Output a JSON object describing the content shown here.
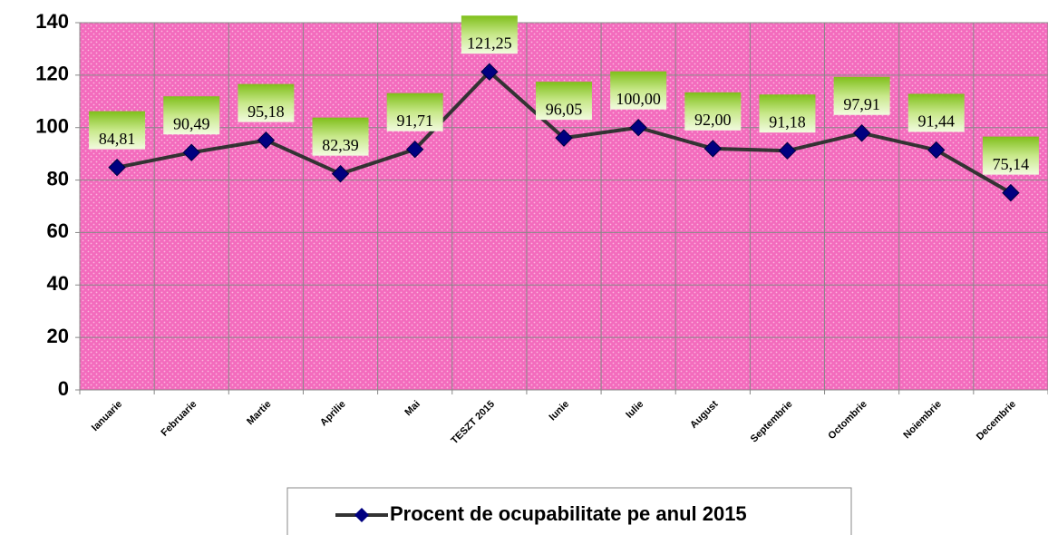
{
  "chart_data": {
    "type": "line",
    "categories": [
      "Ianuarie",
      "Februarie",
      "Martie",
      "Aprilie",
      "Mai",
      "TESZT 2015",
      "Iunie",
      "Iulie",
      "August",
      "Septembrie",
      "Octombrie",
      "Noiembrie",
      "Decembrie"
    ],
    "series": [
      {
        "name": "Procent de ocupabilitate pe anul 2015",
        "color": "#000080",
        "line_color": "#333333",
        "values": [
          84.81,
          90.49,
          95.18,
          82.39,
          91.71,
          121.25,
          96.05,
          100.0,
          92.0,
          91.18,
          97.91,
          91.44,
          75.14
        ],
        "value_labels": [
          "84,81",
          "90,49",
          "95,18",
          "82,39",
          "91,71",
          "121,25",
          "96,05",
          "100,00",
          "92,00",
          "91,18",
          "97,91",
          "91,44",
          "75,14"
        ]
      }
    ],
    "ylim": [
      0,
      140
    ],
    "yticks": [
      0,
      20,
      40,
      60,
      80,
      100,
      120,
      140
    ],
    "grid": true,
    "legend": "bottom"
  }
}
